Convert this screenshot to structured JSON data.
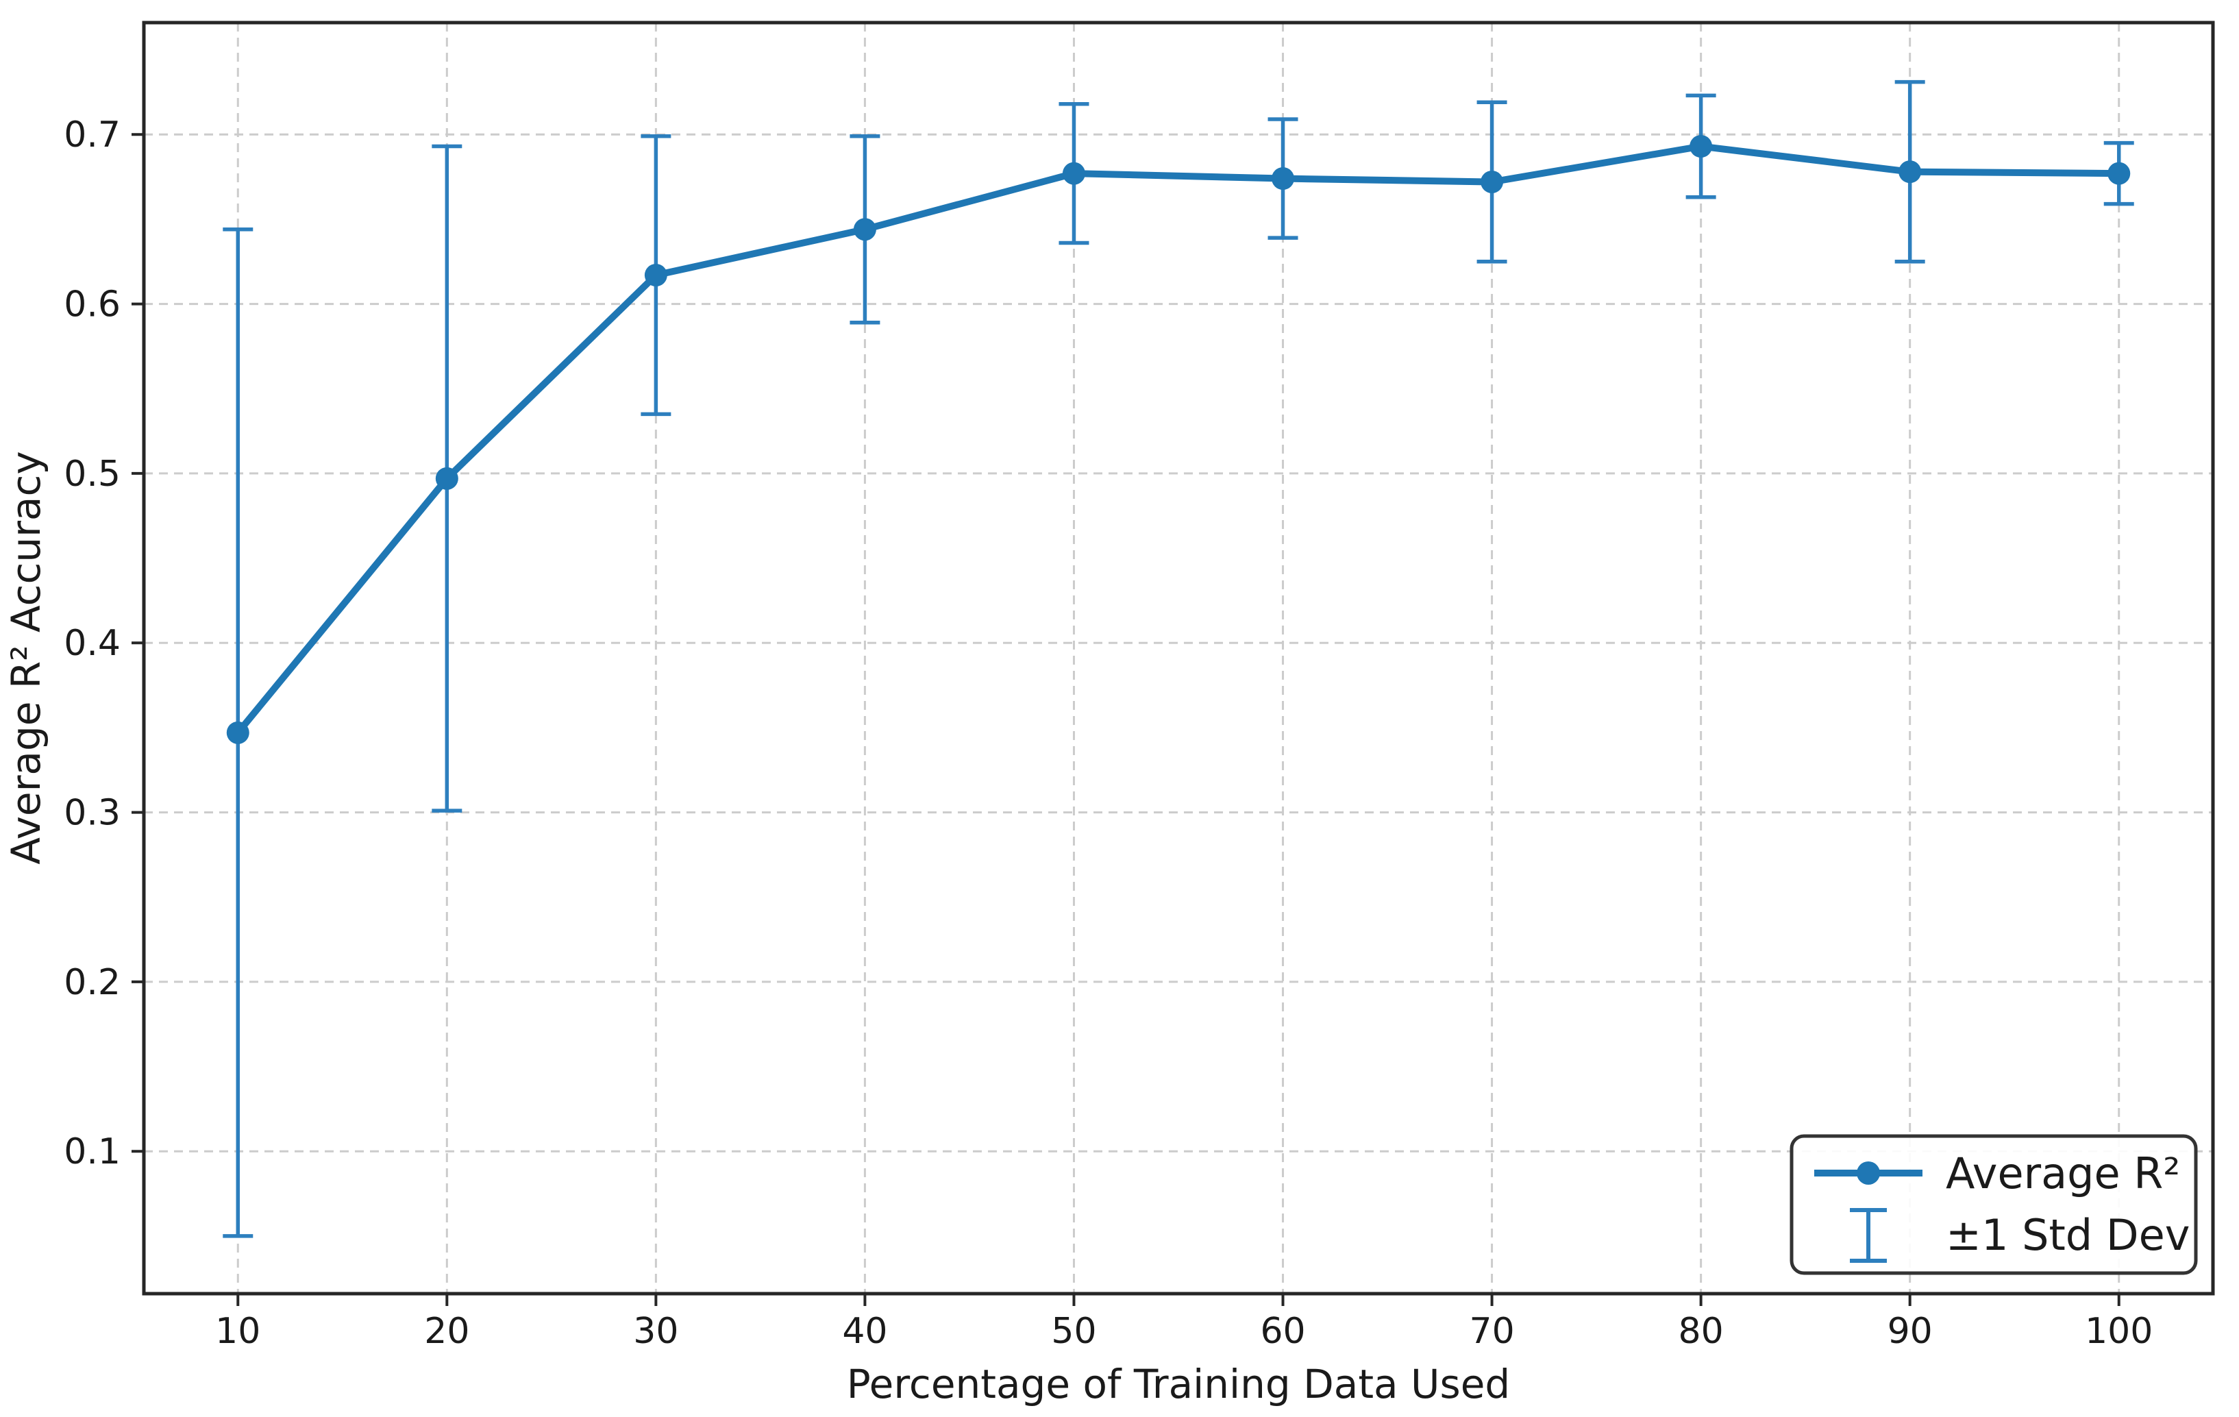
{
  "chart_data": {
    "type": "line",
    "title": "",
    "x": [
      10,
      20,
      30,
      40,
      50,
      60,
      70,
      80,
      90,
      100
    ],
    "series": [
      {
        "name": "Average R²",
        "values": [
          0.347,
          0.497,
          0.617,
          0.644,
          0.677,
          0.674,
          0.672,
          0.693,
          0.678,
          0.677
        ]
      }
    ],
    "errors": {
      "name": "±1 Std Dev",
      "std": [
        0.297,
        0.196,
        0.082,
        0.055,
        0.041,
        0.035,
        0.047,
        0.03,
        0.053,
        0.018
      ]
    },
    "xlabel": "Percentage of Training Data Used",
    "ylabel": "Average R² Accuracy",
    "xticks": [
      10,
      20,
      30,
      40,
      50,
      60,
      70,
      80,
      90,
      100
    ],
    "yticks": [
      0.1,
      0.2,
      0.3,
      0.4,
      0.5,
      0.6,
      0.7
    ],
    "xlim": [
      5.5,
      104.5
    ],
    "ylim": [
      0.016,
      0.766
    ],
    "grid": true,
    "grid_style": "dashed",
    "legend": {
      "position": "lower right",
      "entries": [
        "Average R²",
        "±1 Std Dev"
      ]
    },
    "colors": {
      "line": "#1f77b4",
      "error_bar": "#2d7fbe",
      "grid": "#cccccc",
      "spine": "#262626",
      "text": "#1a1a1a",
      "background": "#ffffff"
    }
  }
}
